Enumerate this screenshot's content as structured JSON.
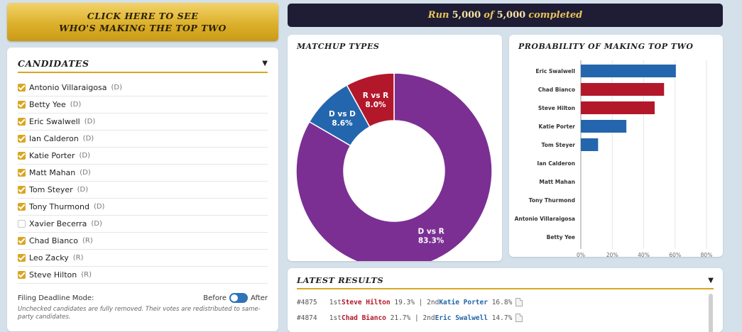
{
  "top_button": {
    "line1": "CLICK HERE TO SEE",
    "line2": "WHO'S MAKING THE TOP TWO"
  },
  "run_banner": {
    "prefix": "Run",
    "current": "5,000",
    "of": "of",
    "total": "5,000",
    "suffix": "completed"
  },
  "candidates_panel": {
    "title": "CANDIDATES",
    "caret": "▼",
    "items": [
      {
        "name": "Antonio Villaraigosa",
        "party": "(D)",
        "checked": true
      },
      {
        "name": "Betty Yee",
        "party": "(D)",
        "checked": true
      },
      {
        "name": "Eric Swalwell",
        "party": "(D)",
        "checked": true
      },
      {
        "name": "Ian Calderon",
        "party": "(D)",
        "checked": true
      },
      {
        "name": "Katie Porter",
        "party": "(D)",
        "checked": true
      },
      {
        "name": "Matt Mahan",
        "party": "(D)",
        "checked": true
      },
      {
        "name": "Tom Steyer",
        "party": "(D)",
        "checked": true
      },
      {
        "name": "Tony Thurmond",
        "party": "(D)",
        "checked": true
      },
      {
        "name": "Xavier Becerra",
        "party": "(D)",
        "checked": false
      },
      {
        "name": "Chad Bianco",
        "party": "(R)",
        "checked": true
      },
      {
        "name": "Leo Zacky",
        "party": "(R)",
        "checked": true
      },
      {
        "name": "Steve Hilton",
        "party": "(R)",
        "checked": true
      }
    ],
    "filing_label": "Filing Deadline Mode:",
    "toggle_before": "Before",
    "toggle_after": "After",
    "note": "Unchecked candidates are fully removed. Their votes are redistributed to same-party candidates."
  },
  "colors": {
    "dem": "#2466ad",
    "rep": "#b3182a",
    "dd_purple": "#7b2f93",
    "gold": "#d9a621"
  },
  "chart_data": [
    {
      "type": "pie",
      "title": "MATCHUP TYPES",
      "slices": [
        {
          "label": "D vs R",
          "value": 83.3,
          "display": "83.3%",
          "color": "#7b2f93"
        },
        {
          "label": "D vs D",
          "value": 8.6,
          "display": "8.6%",
          "color": "#2466ad"
        },
        {
          "label": "R vs R",
          "value": 8.0,
          "display": "8.0%",
          "color": "#b3182a"
        }
      ]
    },
    {
      "type": "bar",
      "orientation": "horizontal",
      "title": "PROBABILITY OF MAKING TOP TWO",
      "categories": [
        "Eric Swalwell",
        "Chad Bianco",
        "Steve Hilton",
        "Katie Porter",
        "Tom Steyer",
        "Ian Calderon",
        "Matt Mahan",
        "Tony Thurmond",
        "Antonio Villaraigosa",
        "Betty Yee"
      ],
      "values": [
        60.5,
        53,
        47,
        29,
        11,
        0,
        0,
        0,
        0,
        0
      ],
      "bar_colors": [
        "#2466ad",
        "#b3182a",
        "#b3182a",
        "#2466ad",
        "#2466ad",
        "#2466ad",
        "#2466ad",
        "#2466ad",
        "#2466ad",
        "#2466ad"
      ],
      "xlim": [
        0,
        80
      ],
      "xticks": [
        "0%",
        "20%",
        "40%",
        "60%",
        "80%"
      ],
      "grid": true
    }
  ],
  "latest_results": {
    "title": "LATEST RESULTS",
    "caret": "▼",
    "rows": [
      {
        "id": "#4875",
        "first_label": "1st",
        "first_name": "Steve Hilton",
        "first_party": "R",
        "first_pct": "19.3%",
        "sep": "|",
        "second_label": "2nd",
        "second_name": "Katie Porter",
        "second_party": "D",
        "second_pct": "16.8%"
      },
      {
        "id": "#4874",
        "first_label": "1st",
        "first_name": "Chad Bianco",
        "first_party": "R",
        "first_pct": "21.7%",
        "sep": "|",
        "second_label": "2nd",
        "second_name": "Eric Swalwell",
        "second_party": "D",
        "second_pct": "14.7%"
      }
    ]
  }
}
